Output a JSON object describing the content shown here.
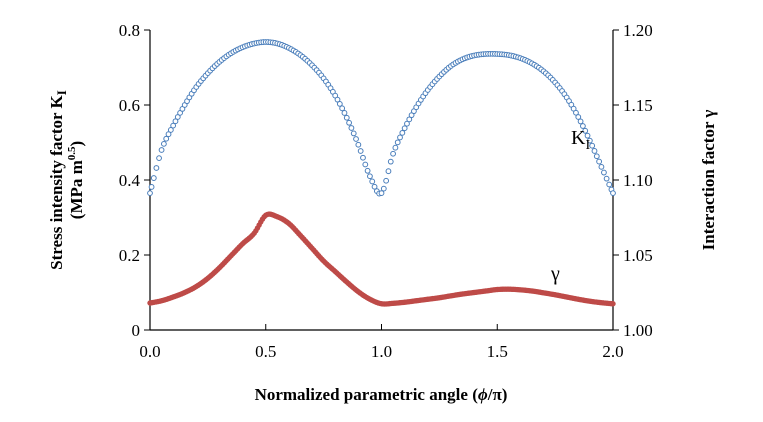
{
  "chart_data": {
    "type": "scatter",
    "xlabel": "Normalized parametric angle (",
    "xlabel_phi": "ϕ",
    "xlabel_slash": "/",
    "xlabel_pi": "π",
    "xlabel_close": ")",
    "xlim": [
      0,
      2
    ],
    "xticks": [
      "0.0",
      "0.5",
      "1.0",
      "1.5",
      "2.0"
    ],
    "left_axis": {
      "label_line1": "Stress intensity factor K",
      "label_line1_sub": "I",
      "label_line2": "(MPa m",
      "label_line2_sup": "0.5",
      "label_line2_close": ")",
      "ylim": [
        0,
        0.8
      ],
      "ticks": [
        "0",
        "0.2",
        "0.4",
        "0.6",
        "0.8"
      ]
    },
    "right_axis": {
      "label": "Interaction factor γ",
      "ylim": [
        1.0,
        1.2
      ],
      "ticks": [
        "1.00",
        "1.05",
        "1.10",
        "1.15",
        "1.20"
      ]
    },
    "series": [
      {
        "name": "K",
        "name_sub": "I",
        "axis": "left",
        "color": "#4a7ebb",
        "marker": "open-circle",
        "x": [
          0,
          0.05,
          0.1,
          0.15,
          0.2,
          0.25,
          0.3,
          0.35,
          0.4,
          0.45,
          0.5,
          0.55,
          0.6,
          0.65,
          0.7,
          0.75,
          0.8,
          0.85,
          0.9,
          0.95,
          1.0,
          1.05,
          1.1,
          1.15,
          1.2,
          1.25,
          1.3,
          1.35,
          1.4,
          1.45,
          1.5,
          1.55,
          1.6,
          1.65,
          1.7,
          1.75,
          1.8,
          1.85,
          1.9,
          1.95,
          2.0
        ],
        "values": [
          0.365,
          0.48,
          0.545,
          0.6,
          0.648,
          0.685,
          0.715,
          0.738,
          0.754,
          0.764,
          0.768,
          0.764,
          0.752,
          0.733,
          0.706,
          0.671,
          0.625,
          0.566,
          0.494,
          0.41,
          0.365,
          0.47,
          0.538,
          0.594,
          0.64,
          0.676,
          0.704,
          0.722,
          0.732,
          0.736,
          0.736,
          0.733,
          0.725,
          0.711,
          0.69,
          0.66,
          0.62,
          0.568,
          0.505,
          0.435,
          0.365
        ]
      },
      {
        "name": "γ",
        "axis": "right",
        "color": "#be4b48",
        "marker": "filled-circle",
        "x": [
          0,
          0.05,
          0.1,
          0.15,
          0.2,
          0.25,
          0.3,
          0.35,
          0.4,
          0.45,
          0.5,
          0.55,
          0.6,
          0.65,
          0.7,
          0.75,
          0.8,
          0.85,
          0.9,
          0.95,
          1.0,
          1.05,
          1.1,
          1.15,
          1.2,
          1.25,
          1.3,
          1.35,
          1.4,
          1.45,
          1.5,
          1.55,
          1.6,
          1.65,
          1.7,
          1.75,
          1.8,
          1.85,
          1.9,
          1.95,
          2.0
        ],
        "values": [
          1.018,
          1.0195,
          1.022,
          1.025,
          1.029,
          1.0345,
          1.0415,
          1.0495,
          1.0575,
          1.0645,
          1.0765,
          1.0755,
          1.071,
          1.063,
          1.0545,
          1.046,
          1.039,
          1.032,
          1.0255,
          1.0205,
          1.0175,
          1.0178,
          1.0185,
          1.0195,
          1.0205,
          1.0215,
          1.0228,
          1.024,
          1.025,
          1.026,
          1.027,
          1.0272,
          1.0268,
          1.026,
          1.0248,
          1.0235,
          1.022,
          1.0205,
          1.0192,
          1.0182,
          1.0175
        ]
      }
    ]
  }
}
